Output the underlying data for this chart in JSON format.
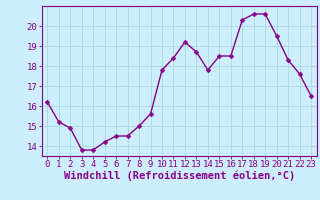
{
  "x": [
    0,
    1,
    2,
    3,
    4,
    5,
    6,
    7,
    8,
    9,
    10,
    11,
    12,
    13,
    14,
    15,
    16,
    17,
    18,
    19,
    20,
    21,
    22,
    23
  ],
  "y": [
    16.2,
    15.2,
    14.9,
    13.8,
    13.8,
    14.2,
    14.5,
    14.5,
    15.0,
    15.6,
    17.8,
    18.4,
    19.2,
    18.7,
    17.8,
    18.5,
    18.5,
    20.3,
    20.6,
    20.6,
    19.5,
    18.3,
    17.6,
    16.5
  ],
  "ylim": [
    13.5,
    21.0
  ],
  "yticks": [
    14,
    15,
    16,
    17,
    18,
    19,
    20
  ],
  "xticks": [
    0,
    1,
    2,
    3,
    4,
    5,
    6,
    7,
    8,
    9,
    10,
    11,
    12,
    13,
    14,
    15,
    16,
    17,
    18,
    19,
    20,
    21,
    22,
    23
  ],
  "line_color": "#880088",
  "marker_color": "#880088",
  "bg_color": "#cceeff",
  "grid_color": "#aadddd",
  "xlabel": "Windchill (Refroidissement éolien,°C)",
  "xlabel_fontsize": 7.5,
  "tick_fontsize": 6.5,
  "line_width": 1.0,
  "marker_size": 2.5
}
